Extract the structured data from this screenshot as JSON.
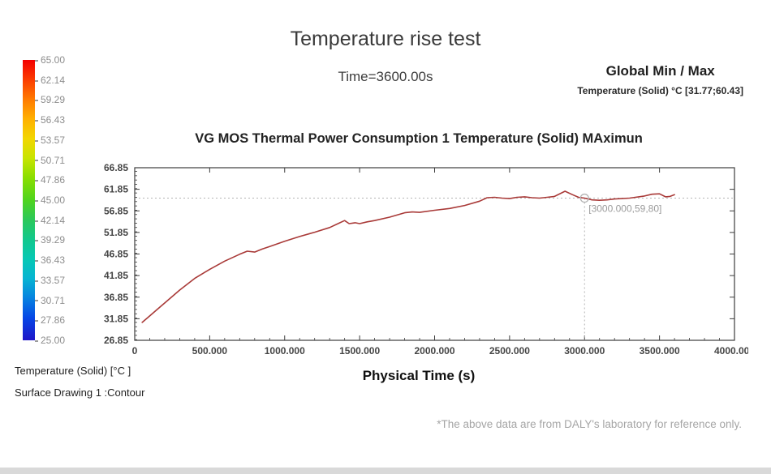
{
  "header": {
    "title": "Temperature rise test",
    "time_label": "Time=3600.00s",
    "global_minmax_title": "Global Min / Max",
    "global_minmax_value": "Temperature (Solid)  °C [31.77;60.43]"
  },
  "colorbar": {
    "labels": [
      "65.00",
      "62.14",
      "59.29",
      "56.43",
      "53.57",
      "50.71",
      "47.86",
      "45.00",
      "42.14",
      "39.29",
      "36.43",
      "33.57",
      "30.71",
      "27.86",
      "25.00"
    ]
  },
  "chart_data": {
    "type": "line",
    "title": "VG MOS Thermal Power Consumption 1 Temperature (Solid)  MAximun",
    "xlabel": "Physical Time (s)",
    "x_ticks": [
      "0",
      "500.000",
      "1000.000",
      "1500.000",
      "2000.000",
      "2500.000",
      "3000.000",
      "3500.000",
      "4000.000"
    ],
    "y_ticks": [
      "66.85",
      "61.85",
      "56.85",
      "51.85",
      "46.85",
      "41.85",
      "36.85",
      "31.85",
      "26.85"
    ],
    "xlim": [
      0,
      4000
    ],
    "ylim": [
      26.85,
      66.85
    ],
    "grid": false,
    "legend_position": "none",
    "marker": {
      "x": 3000,
      "y": 59.8,
      "label": "[3000.000,59,80]"
    },
    "series": [
      {
        "name": "Temperature (Solid) MAximun",
        "color": "#a93a38",
        "x": [
          50,
          100,
          150,
          200,
          300,
          400,
          500,
          600,
          700,
          750,
          800,
          850,
          900,
          1000,
          1100,
          1200,
          1300,
          1350,
          1400,
          1430,
          1470,
          1500,
          1550,
          1600,
          1700,
          1800,
          1850,
          1900,
          2000,
          2100,
          2200,
          2300,
          2350,
          2400,
          2450,
          2500,
          2550,
          2600,
          2650,
          2700,
          2750,
          2800,
          2870,
          2920,
          2960,
          3000,
          3050,
          3100,
          3150,
          3200,
          3300,
          3400,
          3450,
          3500,
          3540,
          3570,
          3600
        ],
        "y": [
          31.0,
          32.5,
          34.0,
          35.5,
          38.5,
          41.2,
          43.3,
          45.2,
          46.8,
          47.5,
          47.3,
          48.0,
          48.6,
          49.8,
          50.9,
          51.9,
          53.0,
          53.8,
          54.6,
          53.9,
          54.1,
          53.9,
          54.3,
          54.6,
          55.4,
          56.4,
          56.6,
          56.5,
          57.0,
          57.4,
          58.1,
          59.1,
          59.9,
          60.0,
          59.8,
          59.7,
          60.0,
          60.1,
          59.9,
          59.8,
          60.0,
          60.2,
          61.4,
          60.6,
          60.0,
          59.8,
          59.4,
          59.3,
          59.4,
          59.6,
          59.8,
          60.3,
          60.7,
          60.8,
          60.1,
          60.2,
          60.6
        ]
      }
    ]
  },
  "legend": {
    "line1": "Temperature (Solid) [°C ]",
    "line2": "Surface Drawing 1 :Contour"
  },
  "footer": {
    "note": "*The above data are from DALY's laboratory for reference only."
  }
}
